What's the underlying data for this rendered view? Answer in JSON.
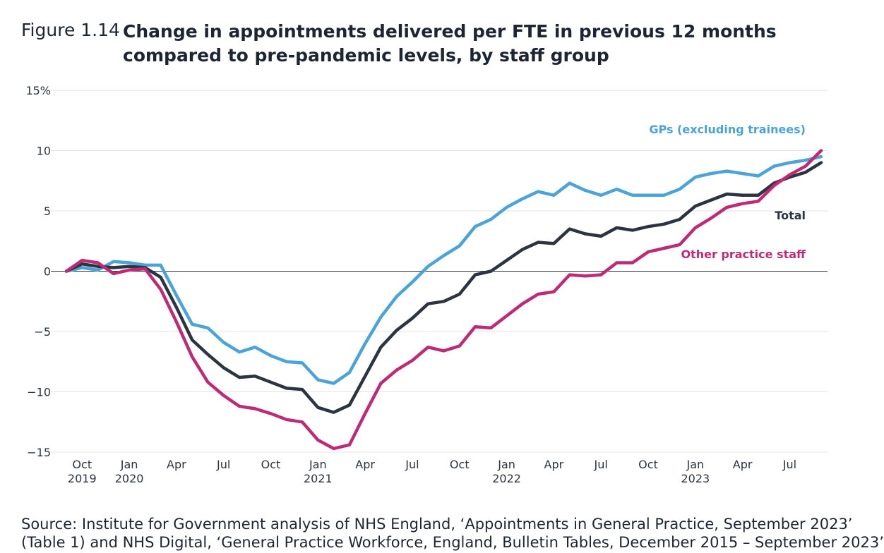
{
  "figure": {
    "label": "Figure 1.14",
    "title": "Change in appointments delivered per FTE in previous 12 months compared to pre-pandemic levels, by staff group",
    "source": "Source: Institute for Government analysis of NHS England, ‘Appointments in General Practice, September 2023’",
    "source_cont": "(Table 1) and NHS Digital, ‘General Practice Workforce, England, Bulletin Tables, December 2015 – September 2023’"
  },
  "chart_data": {
    "type": "line",
    "y_unit_label": "15%",
    "ylim": [
      -15,
      15
    ],
    "yticks": [
      {
        "value": 15,
        "label": "15%"
      },
      {
        "value": 10,
        "label": "10"
      },
      {
        "value": 5,
        "label": "5"
      },
      {
        "value": 0,
        "label": "0"
      },
      {
        "value": -5,
        "label": "−5"
      },
      {
        "value": -10,
        "label": "−10"
      },
      {
        "value": -15,
        "label": "−15"
      }
    ],
    "x": [
      "2019-09",
      "2019-10",
      "2019-11",
      "2019-12",
      "2020-01",
      "2020-02",
      "2020-03",
      "2020-04",
      "2020-05",
      "2020-06",
      "2020-07",
      "2020-08",
      "2020-09",
      "2020-10",
      "2020-11",
      "2020-12",
      "2021-01",
      "2021-02",
      "2021-03",
      "2021-04",
      "2021-05",
      "2021-06",
      "2021-07",
      "2021-08",
      "2021-09",
      "2021-10",
      "2021-11",
      "2021-12",
      "2022-01",
      "2022-02",
      "2022-03",
      "2022-04",
      "2022-05",
      "2022-06",
      "2022-07",
      "2022-08",
      "2022-09",
      "2022-10",
      "2022-11",
      "2022-12",
      "2023-01",
      "2023-02",
      "2023-03",
      "2023-04",
      "2023-05",
      "2023-06",
      "2023-07",
      "2023-08",
      "2023-09"
    ],
    "xticks": [
      {
        "x": "2019-10",
        "label": "Oct",
        "year": "2019"
      },
      {
        "x": "2020-01",
        "label": "Jan",
        "year": "2020"
      },
      {
        "x": "2020-04",
        "label": "Apr",
        "year": ""
      },
      {
        "x": "2020-07",
        "label": "Jul",
        "year": ""
      },
      {
        "x": "2020-10",
        "label": "Oct",
        "year": ""
      },
      {
        "x": "2021-01",
        "label": "Jan",
        "year": "2021"
      },
      {
        "x": "2021-04",
        "label": "Apr",
        "year": ""
      },
      {
        "x": "2021-07",
        "label": "Jul",
        "year": ""
      },
      {
        "x": "2021-10",
        "label": "Oct",
        "year": ""
      },
      {
        "x": "2022-01",
        "label": "Jan",
        "year": "2022"
      },
      {
        "x": "2022-04",
        "label": "Apr",
        "year": ""
      },
      {
        "x": "2022-07",
        "label": "Jul",
        "year": ""
      },
      {
        "x": "2022-10",
        "label": "Oct",
        "year": ""
      },
      {
        "x": "2023-01",
        "label": "Jan",
        "year": "2023"
      },
      {
        "x": "2023-04",
        "label": "Apr",
        "year": ""
      },
      {
        "x": "2023-07",
        "label": "Jul",
        "year": ""
      }
    ],
    "grid": true,
    "series": [
      {
        "name": "GPs (excluding trainees)",
        "color": "#4aa3d9",
        "values": [
          0,
          0.3,
          0.1,
          0.8,
          0.7,
          0.5,
          0.5,
          -2.0,
          -4.4,
          -4.7,
          -5.9,
          -6.7,
          -6.3,
          -7.0,
          -7.5,
          -7.6,
          -9.0,
          -9.3,
          -8.4,
          -6.0,
          -3.8,
          -2.1,
          -0.9,
          0.4,
          1.3,
          2.1,
          3.7,
          4.3,
          5.3,
          6.0,
          6.6,
          6.3,
          7.3,
          6.7,
          6.3,
          6.8,
          6.3,
          6.3,
          6.3,
          6.8,
          7.8,
          8.1,
          8.3,
          8.1,
          7.9,
          8.7,
          9.0,
          9.2,
          9.5
        ]
      },
      {
        "name": "Total",
        "color": "#2b3440",
        "values": [
          0,
          0.6,
          0.4,
          0.3,
          0.4,
          0.3,
          -0.5,
          -3.0,
          -5.7,
          -6.9,
          -8.0,
          -8.8,
          -8.7,
          -9.2,
          -9.7,
          -9.8,
          -11.3,
          -11.7,
          -11.1,
          -8.7,
          -6.3,
          -4.9,
          -3.9,
          -2.7,
          -2.5,
          -1.9,
          -0.3,
          0.0,
          0.9,
          1.8,
          2.4,
          2.3,
          3.5,
          3.1,
          2.9,
          3.6,
          3.4,
          3.7,
          3.9,
          4.3,
          5.4,
          5.9,
          6.4,
          6.3,
          6.3,
          7.3,
          7.8,
          8.2,
          9.0
        ]
      },
      {
        "name": "Other practice staff",
        "color": "#c02a74",
        "values": [
          0,
          0.9,
          0.7,
          -0.2,
          0.1,
          0.2,
          -1.5,
          -4.2,
          -7.1,
          -9.2,
          -10.3,
          -11.2,
          -11.4,
          -11.8,
          -12.3,
          -12.5,
          -14.0,
          -14.7,
          -14.4,
          -11.8,
          -9.3,
          -8.2,
          -7.4,
          -6.3,
          -6.6,
          -6.2,
          -4.6,
          -4.7,
          -3.7,
          -2.7,
          -1.9,
          -1.7,
          -0.3,
          -0.4,
          -0.3,
          0.7,
          0.7,
          1.6,
          1.9,
          2.2,
          3.6,
          4.4,
          5.3,
          5.6,
          5.8,
          7.1,
          8.0,
          8.7,
          10.0
        ]
      }
    ],
    "annotations": [
      {
        "series": "GPs (excluding trainees)",
        "text": "GPs (excluding trainees)",
        "color": "#4aa3d9"
      },
      {
        "series": "Total",
        "text": "Total",
        "color": "#2b3440"
      },
      {
        "series": "Other practice staff",
        "text": "Other practice staff",
        "color": "#c02a74"
      }
    ]
  }
}
